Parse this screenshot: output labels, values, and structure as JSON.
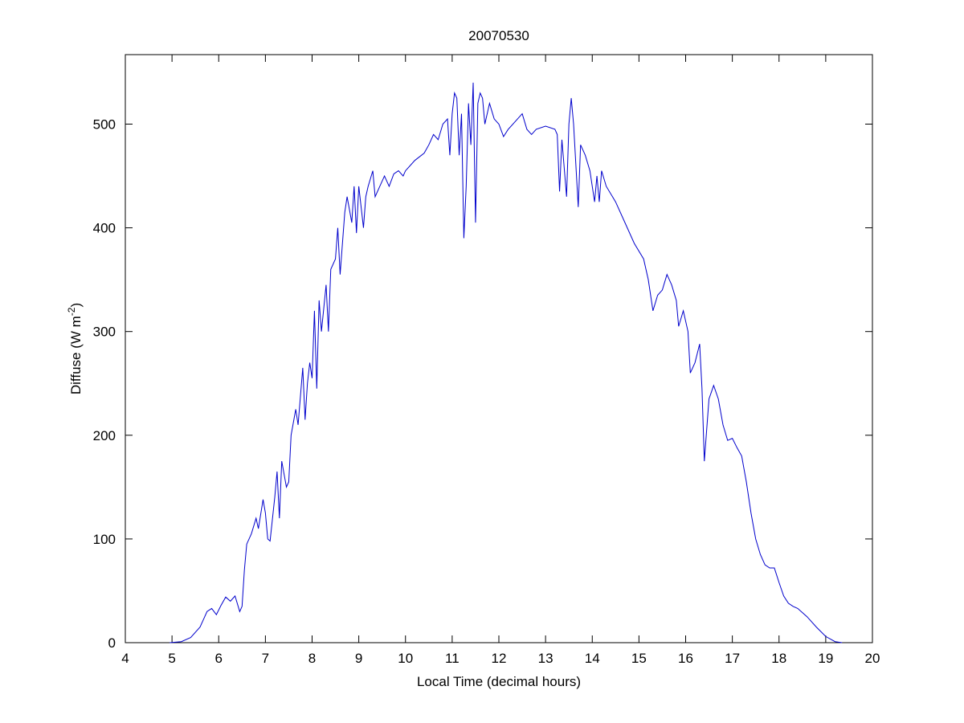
{
  "chart_data": {
    "type": "line",
    "title": "20070530",
    "xlabel": "Local Time (decimal hours)",
    "ylabel": [
      "Diffuse (W m",
      "-2",
      ")"
    ],
    "xlim": [
      4,
      20
    ],
    "ylim": [
      0,
      567
    ],
    "xticks": [
      4,
      5,
      6,
      7,
      8,
      9,
      10,
      11,
      12,
      13,
      14,
      15,
      16,
      17,
      18,
      19,
      20
    ],
    "yticks": [
      0,
      100,
      200,
      300,
      400,
      500
    ],
    "series": [
      {
        "color": "#0000cc",
        "x": [
          4.95,
          5.2,
          5.4,
          5.6,
          5.75,
          5.85,
          5.95,
          6.05,
          6.15,
          6.25,
          6.35,
          6.45,
          6.5,
          6.55,
          6.6,
          6.7,
          6.8,
          6.85,
          6.95,
          7.0,
          7.05,
          7.1,
          7.2,
          7.25,
          7.3,
          7.35,
          7.45,
          7.5,
          7.55,
          7.65,
          7.7,
          7.8,
          7.85,
          7.9,
          7.95,
          8.0,
          8.05,
          8.1,
          8.15,
          8.2,
          8.3,
          8.35,
          8.4,
          8.5,
          8.55,
          8.6,
          8.7,
          8.75,
          8.85,
          8.9,
          8.95,
          9.0,
          9.1,
          9.15,
          9.2,
          9.3,
          9.35,
          9.45,
          9.55,
          9.65,
          9.75,
          9.85,
          9.95,
          10.0,
          10.2,
          10.4,
          10.5,
          10.6,
          10.7,
          10.8,
          10.9,
          10.95,
          11.0,
          11.05,
          11.1,
          11.15,
          11.2,
          11.25,
          11.3,
          11.35,
          11.4,
          11.45,
          11.5,
          11.55,
          11.6,
          11.65,
          11.7,
          11.8,
          11.9,
          12.0,
          12.1,
          12.2,
          12.4,
          12.5,
          12.6,
          12.7,
          12.8,
          13.0,
          13.2,
          13.25,
          13.3,
          13.35,
          13.45,
          13.5,
          13.55,
          13.6,
          13.7,
          13.75,
          13.85,
          13.95,
          14.0,
          14.05,
          14.1,
          14.15,
          14.2,
          14.3,
          14.5,
          14.7,
          14.9,
          15.1,
          15.2,
          15.3,
          15.4,
          15.5,
          15.6,
          15.7,
          15.8,
          15.85,
          15.95,
          16.05,
          16.1,
          16.2,
          16.3,
          16.35,
          16.4,
          16.5,
          16.6,
          16.7,
          16.8,
          16.9,
          17.0,
          17.1,
          17.2,
          17.3,
          17.4,
          17.5,
          17.6,
          17.7,
          17.8,
          17.9,
          18.0,
          18.1,
          18.2,
          18.3,
          18.4,
          18.6,
          18.8,
          19.0,
          19.2,
          19.35
        ],
        "values": [
          0,
          1,
          5,
          15,
          30,
          33,
          27,
          36,
          44,
          40,
          45,
          30,
          35,
          70,
          95,
          105,
          120,
          110,
          138,
          125,
          100,
          98,
          140,
          165,
          120,
          175,
          150,
          155,
          200,
          225,
          210,
          265,
          215,
          250,
          270,
          255,
          320,
          245,
          330,
          300,
          345,
          300,
          360,
          370,
          400,
          355,
          415,
          430,
          405,
          440,
          395,
          440,
          400,
          430,
          440,
          455,
          430,
          440,
          450,
          440,
          452,
          455,
          450,
          455,
          465,
          472,
          480,
          490,
          485,
          500,
          505,
          470,
          510,
          530,
          525,
          470,
          510,
          390,
          440,
          520,
          480,
          540,
          405,
          520,
          530,
          525,
          500,
          520,
          505,
          500,
          488,
          495,
          505,
          510,
          495,
          490,
          495,
          498,
          495,
          490,
          435,
          485,
          430,
          500,
          525,
          500,
          420,
          480,
          470,
          455,
          440,
          425,
          450,
          425,
          455,
          440,
          425,
          405,
          385,
          370,
          350,
          320,
          335,
          340,
          355,
          345,
          330,
          305,
          320,
          300,
          260,
          270,
          288,
          245,
          175,
          235,
          248,
          235,
          210,
          195,
          197,
          188,
          180,
          155,
          125,
          100,
          85,
          75,
          72,
          72,
          58,
          45,
          38,
          35,
          33,
          25,
          15,
          6,
          1,
          0
        ]
      }
    ]
  }
}
